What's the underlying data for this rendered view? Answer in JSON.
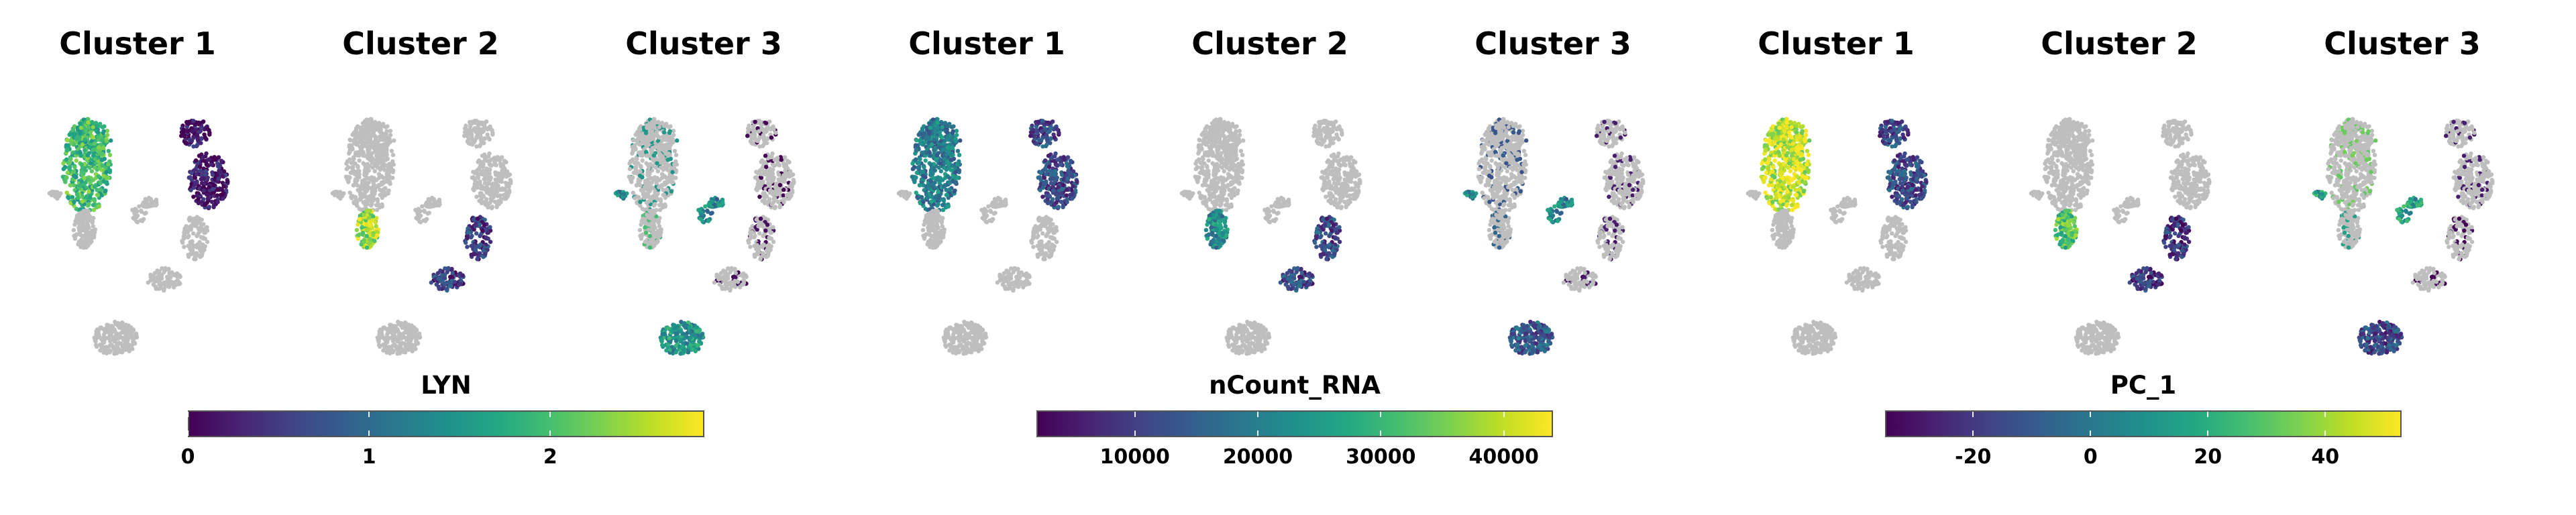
{
  "chart_data": {
    "type": "scatter",
    "panels": [
      {
        "title": "Cluster 1",
        "group": 0,
        "cluster": 1
      },
      {
        "title": "Cluster 2",
        "group": 0,
        "cluster": 2
      },
      {
        "title": "Cluster 3",
        "group": 0,
        "cluster": 3
      },
      {
        "title": "Cluster 1",
        "group": 1,
        "cluster": 1
      },
      {
        "title": "Cluster 2",
        "group": 1,
        "cluster": 2
      },
      {
        "title": "Cluster 3",
        "group": 1,
        "cluster": 3
      },
      {
        "title": "Cluster 1",
        "group": 2,
        "cluster": 1
      },
      {
        "title": "Cluster 2",
        "group": 2,
        "cluster": 2
      },
      {
        "title": "Cluster 3",
        "group": 2,
        "cluster": 3
      }
    ],
    "features": [
      {
        "name": "LYN",
        "colormap": "viridis",
        "range": [
          0,
          2.85
        ],
        "ticks": [
          0,
          1,
          2
        ],
        "cluster_levels": {
          "1a": 0.68,
          "1b": 0.05,
          "2a": 0.85,
          "2b": 0.18,
          "3": 0.45,
          "4": 0.52
        }
      },
      {
        "name": "nCount_RNA",
        "colormap": "viridis",
        "range": [
          2000,
          44000
        ],
        "ticks": [
          10000,
          20000,
          30000,
          40000
        ],
        "cluster_levels": {
          "1a": 0.42,
          "1b": 0.22,
          "2a": 0.48,
          "2b": 0.22,
          "3": 0.45,
          "4": 0.28
        }
      },
      {
        "name": "PC_1",
        "colormap": "viridis",
        "range": [
          -35,
          53
        ],
        "ticks": [
          -20,
          0,
          20,
          40
        ],
        "cluster_levels": {
          "1a": 0.92,
          "1b": 0.22,
          "2a": 0.72,
          "2b": 0.15,
          "3": 0.55,
          "4": 0.22
        }
      }
    ],
    "background_color": "#bebebe",
    "grid": false
  }
}
